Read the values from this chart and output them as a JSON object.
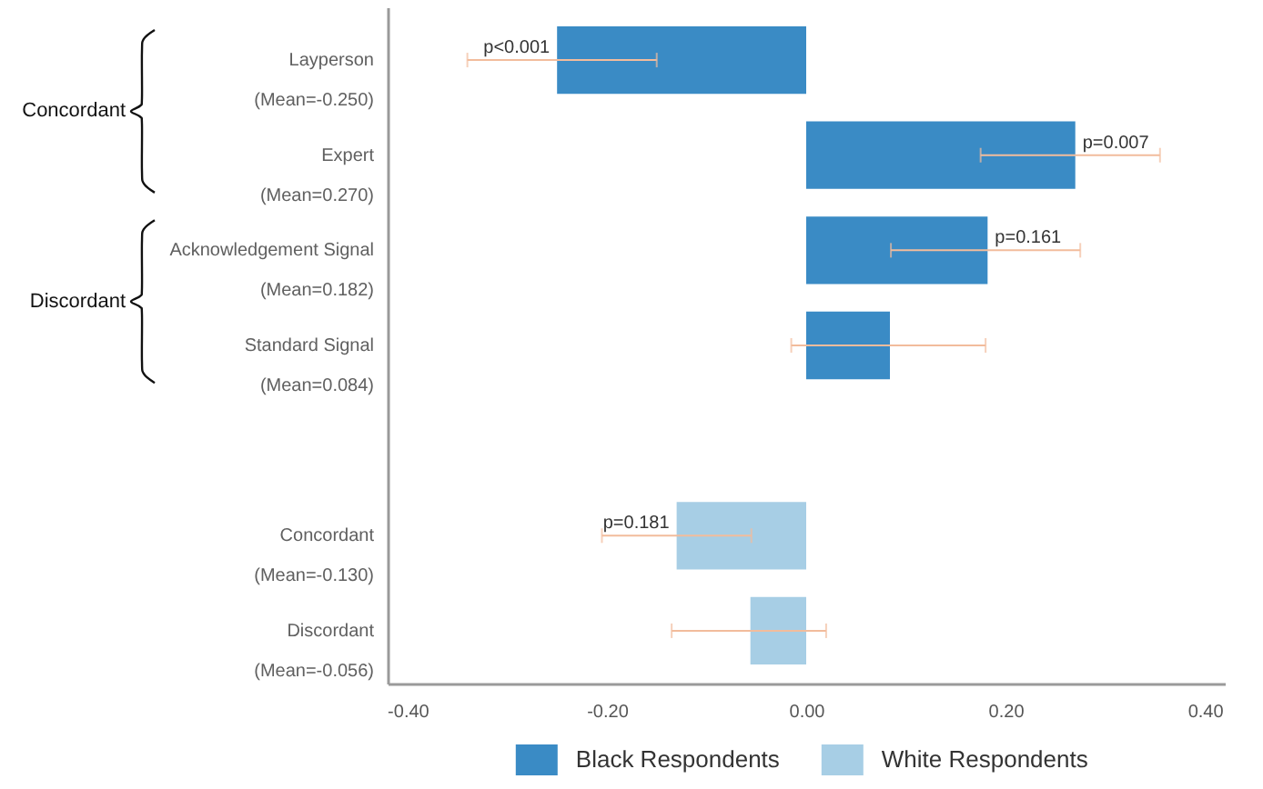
{
  "chart_data": {
    "type": "bar",
    "orientation": "horizontal",
    "categories": [
      "Layperson\n(Mean=-0.250)",
      "Expert\n(Mean=0.270)",
      "Acknowledgement Signal\n(Mean=0.182)",
      "Standard Signal\n(Mean=0.084)",
      null,
      "Concordant\n(Mean=-0.130)",
      "Discordant\n(Mean=-0.056)"
    ],
    "series": [
      {
        "name": "Black Respondents",
        "color": "#3a8bc5",
        "values": [
          -0.25,
          0.27,
          0.182,
          0.084,
          null,
          null,
          null
        ],
        "errors": [
          [
            -0.34,
            -0.15
          ],
          [
            0.175,
            0.355
          ],
          [
            0.085,
            0.275
          ],
          [
            -0.015,
            0.18
          ],
          null,
          null,
          null
        ]
      },
      {
        "name": "White Respondents",
        "color": "#a7cee5",
        "values": [
          null,
          null,
          null,
          null,
          null,
          -0.13,
          -0.056
        ],
        "errors": [
          null,
          null,
          null,
          null,
          null,
          [
            -0.205,
            -0.055
          ],
          [
            -0.135,
            0.02
          ]
        ]
      }
    ],
    "xlim": [
      -0.42,
      0.42
    ],
    "xticks": [
      {
        "value": -0.4,
        "label": "-0.40"
      },
      {
        "value": -0.2,
        "label": "-0.20"
      },
      {
        "value": 0,
        "label": "0.00"
      },
      {
        "value": 0.2,
        "label": "0.20"
      },
      {
        "value": 0.4,
        "label": "0.40"
      }
    ],
    "annotations": [
      "Concordant",
      "Discordant",
      {
        "text": "p<0.001",
        "x": -0.25,
        "y": "Layperson\n(Mean=-0.250)"
      },
      {
        "text": "p=0.007",
        "x": 0.27,
        "y": "Expert\n(Mean=0.270)"
      },
      {
        "text": "p=0.161",
        "x": 0.182,
        "y": "Acknowledgement Signal\n(Mean=0.182)"
      },
      {
        "text": "p=0.181",
        "x": -0.13,
        "y": "Concordant\n(Mean=-0.130)"
      }
    ],
    "legend": "bottom"
  }
}
